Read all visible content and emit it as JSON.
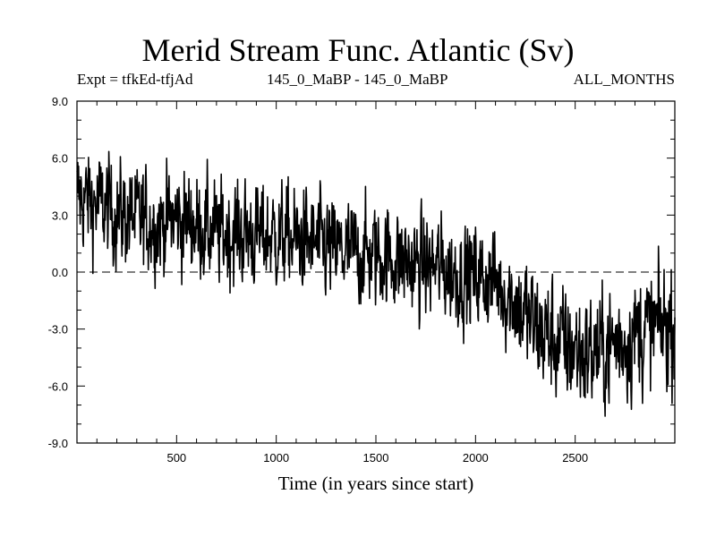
{
  "chart_data": {
    "type": "line",
    "title": "Merid Stream Func. Atlantic (Sv)",
    "subtitle_left": "Expt = tfkEd-tfjAd",
    "subtitle_center": "145_0_MaBP - 145_0_MaBP",
    "subtitle_right": "ALL_MONTHS",
    "xlabel": "Time (in years since start)",
    "ylabel": "",
    "xlim": [
      0,
      3000
    ],
    "ylim": [
      -9.0,
      9.0
    ],
    "x_ticks": [
      500,
      1000,
      1500,
      2000,
      2500
    ],
    "y_ticks": [
      9.0,
      6.0,
      3.0,
      0.0,
      -3.0,
      -6.0,
      -9.0
    ],
    "y_tick_labels": [
      "9.0",
      "6.0",
      "3.0",
      "0.0",
      "-3.0",
      "-6.0",
      "-9.0"
    ],
    "reference_line": {
      "y": 0.0,
      "style": "dashed"
    },
    "series": [
      {
        "x": [
          0,
          100,
          200,
          300,
          400,
          500,
          600,
          700,
          800,
          900,
          1000,
          1100,
          1200,
          1300,
          1400,
          1500,
          1600,
          1700,
          1800,
          1900,
          2000,
          2100,
          2200,
          2300,
          2400,
          2500,
          2600,
          2700,
          2800,
          2900,
          3000
        ],
        "values": [
          4.0,
          3.6,
          3.1,
          2.8,
          2.6,
          2.8,
          2.5,
          2.0,
          2.1,
          1.9,
          1.9,
          1.7,
          1.5,
          1.1,
          1.0,
          0.9,
          0.7,
          0.3,
          0.3,
          -0.1,
          -0.2,
          -0.5,
          -1.6,
          -2.9,
          -3.6,
          -4.1,
          -4.3,
          -3.8,
          -3.2,
          -3.0,
          -2.6
        ]
      }
    ],
    "grid": false
  },
  "colors": {
    "line": "#000000",
    "background": "#ffffff"
  }
}
